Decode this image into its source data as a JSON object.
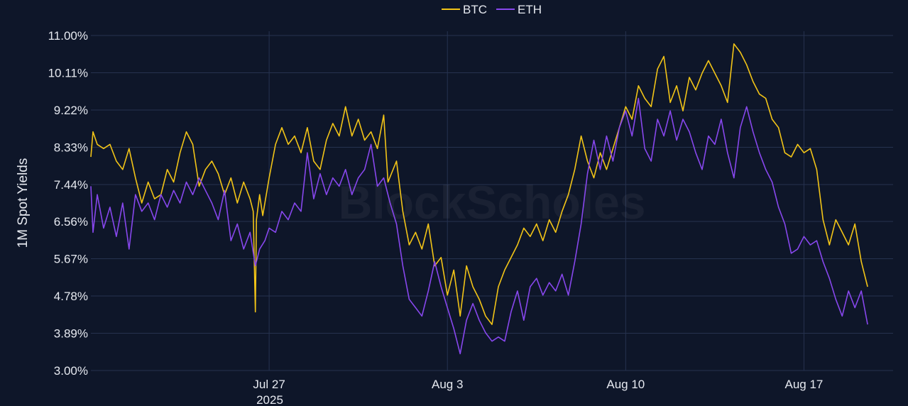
{
  "chart_data": {
    "type": "line",
    "xlabel": "",
    "ylabel": "1M Spot Yields",
    "year_label": "2025",
    "watermark": "BlockScholes",
    "x_range": [
      "2025-07-19T00:00",
      "2025-08-19T12:00"
    ],
    "ylim": [
      3.0,
      11.0
    ],
    "grid": true,
    "legend_position": "top-center",
    "x_ticks": [
      {
        "date": "2025-07-26T00:00",
        "label": "Jul 27"
      },
      {
        "date": "2025-08-02T00:00",
        "label": "Aug 3"
      },
      {
        "date": "2025-08-09T00:00",
        "label": "Aug 10"
      },
      {
        "date": "2025-08-16T00:00",
        "label": "Aug 17"
      }
    ],
    "y_ticks": [
      "3.00%",
      "3.89%",
      "4.78%",
      "5.67%",
      "6.56%",
      "7.44%",
      "8.33%",
      "9.22%",
      "10.11%",
      "11.00%"
    ],
    "y_tick_values": [
      3.0,
      3.89,
      4.78,
      5.67,
      6.56,
      7.44,
      8.33,
      9.22,
      10.11,
      11.0
    ],
    "series": [
      {
        "name": "BTC",
        "color": "#f2c417",
        "points": [
          [
            "2025-07-19T00:00",
            8.1
          ],
          [
            "2025-07-19T02:00",
            8.7
          ],
          [
            "2025-07-19T06:00",
            8.4
          ],
          [
            "2025-07-19T12:00",
            8.3
          ],
          [
            "2025-07-19T18:00",
            8.4
          ],
          [
            "2025-07-20T00:00",
            8.0
          ],
          [
            "2025-07-20T06:00",
            7.8
          ],
          [
            "2025-07-20T12:00",
            8.3
          ],
          [
            "2025-07-20T18:00",
            7.6
          ],
          [
            "2025-07-21T00:00",
            7.0
          ],
          [
            "2025-07-21T06:00",
            7.5
          ],
          [
            "2025-07-21T12:00",
            7.1
          ],
          [
            "2025-07-21T18:00",
            7.2
          ],
          [
            "2025-07-22T00:00",
            7.8
          ],
          [
            "2025-07-22T06:00",
            7.5
          ],
          [
            "2025-07-22T12:00",
            8.2
          ],
          [
            "2025-07-22T18:00",
            8.7
          ],
          [
            "2025-07-23T00:00",
            8.4
          ],
          [
            "2025-07-23T06:00",
            7.4
          ],
          [
            "2025-07-23T12:00",
            7.8
          ],
          [
            "2025-07-23T18:00",
            8.0
          ],
          [
            "2025-07-24T00:00",
            7.7
          ],
          [
            "2025-07-24T06:00",
            7.2
          ],
          [
            "2025-07-24T12:00",
            7.6
          ],
          [
            "2025-07-24T18:00",
            7.0
          ],
          [
            "2025-07-25T00:00",
            7.5
          ],
          [
            "2025-07-25T06:00",
            7.1
          ],
          [
            "2025-07-25T09:00",
            6.8
          ],
          [
            "2025-07-25T11:00",
            4.4
          ],
          [
            "2025-07-25T12:00",
            6.6
          ],
          [
            "2025-07-25T15:00",
            7.2
          ],
          [
            "2025-07-25T18:00",
            6.7
          ],
          [
            "2025-07-26T00:00",
            7.6
          ],
          [
            "2025-07-26T06:00",
            8.4
          ],
          [
            "2025-07-26T12:00",
            8.8
          ],
          [
            "2025-07-26T18:00",
            8.4
          ],
          [
            "2025-07-27T00:00",
            8.6
          ],
          [
            "2025-07-27T06:00",
            8.2
          ],
          [
            "2025-07-27T12:00",
            8.8
          ],
          [
            "2025-07-27T18:00",
            8.0
          ],
          [
            "2025-07-28T00:00",
            7.8
          ],
          [
            "2025-07-28T06:00",
            8.5
          ],
          [
            "2025-07-28T12:00",
            8.9
          ],
          [
            "2025-07-28T18:00",
            8.6
          ],
          [
            "2025-07-29T00:00",
            9.3
          ],
          [
            "2025-07-29T06:00",
            8.6
          ],
          [
            "2025-07-29T12:00",
            9.0
          ],
          [
            "2025-07-29T18:00",
            8.5
          ],
          [
            "2025-07-30T00:00",
            8.7
          ],
          [
            "2025-07-30T06:00",
            8.3
          ],
          [
            "2025-07-30T12:00",
            9.1
          ],
          [
            "2025-07-30T16:00",
            7.5
          ],
          [
            "2025-07-31T00:00",
            8.0
          ],
          [
            "2025-07-31T06:00",
            6.8
          ],
          [
            "2025-07-31T12:00",
            6.0
          ],
          [
            "2025-07-31T18:00",
            6.3
          ],
          [
            "2025-08-01T00:00",
            5.9
          ],
          [
            "2025-08-01T06:00",
            6.5
          ],
          [
            "2025-08-01T12:00",
            5.5
          ],
          [
            "2025-08-01T18:00",
            5.7
          ],
          [
            "2025-08-02T00:00",
            4.8
          ],
          [
            "2025-08-02T06:00",
            5.4
          ],
          [
            "2025-08-02T12:00",
            4.3
          ],
          [
            "2025-08-02T18:00",
            5.5
          ],
          [
            "2025-08-03T00:00",
            5.0
          ],
          [
            "2025-08-03T06:00",
            4.7
          ],
          [
            "2025-08-03T12:00",
            4.3
          ],
          [
            "2025-08-03T18:00",
            4.1
          ],
          [
            "2025-08-04T00:00",
            5.0
          ],
          [
            "2025-08-04T06:00",
            5.4
          ],
          [
            "2025-08-04T12:00",
            5.7
          ],
          [
            "2025-08-04T18:00",
            6.0
          ],
          [
            "2025-08-05T00:00",
            6.4
          ],
          [
            "2025-08-05T06:00",
            6.2
          ],
          [
            "2025-08-05T12:00",
            6.5
          ],
          [
            "2025-08-05T18:00",
            6.1
          ],
          [
            "2025-08-06T00:00",
            6.6
          ],
          [
            "2025-08-06T06:00",
            6.3
          ],
          [
            "2025-08-06T12:00",
            6.8
          ],
          [
            "2025-08-06T18:00",
            7.2
          ],
          [
            "2025-08-07T00:00",
            7.8
          ],
          [
            "2025-08-07T06:00",
            8.6
          ],
          [
            "2025-08-07T12:00",
            8.0
          ],
          [
            "2025-08-07T18:00",
            7.6
          ],
          [
            "2025-08-08T00:00",
            8.2
          ],
          [
            "2025-08-08T06:00",
            7.8
          ],
          [
            "2025-08-08T12:00",
            8.3
          ],
          [
            "2025-08-08T18:00",
            8.8
          ],
          [
            "2025-08-09T00:00",
            9.3
          ],
          [
            "2025-08-09T06:00",
            9.0
          ],
          [
            "2025-08-09T12:00",
            9.8
          ],
          [
            "2025-08-09T18:00",
            9.5
          ],
          [
            "2025-08-10T00:00",
            9.3
          ],
          [
            "2025-08-10T06:00",
            10.2
          ],
          [
            "2025-08-10T12:00",
            10.5
          ],
          [
            "2025-08-10T18:00",
            9.4
          ],
          [
            "2025-08-11T00:00",
            9.8
          ],
          [
            "2025-08-11T06:00",
            9.2
          ],
          [
            "2025-08-11T12:00",
            10.0
          ],
          [
            "2025-08-11T18:00",
            9.7
          ],
          [
            "2025-08-12T00:00",
            10.1
          ],
          [
            "2025-08-12T06:00",
            10.4
          ],
          [
            "2025-08-12T12:00",
            10.1
          ],
          [
            "2025-08-12T18:00",
            9.8
          ],
          [
            "2025-08-13T00:00",
            9.4
          ],
          [
            "2025-08-13T06:00",
            10.8
          ],
          [
            "2025-08-13T12:00",
            10.6
          ],
          [
            "2025-08-13T18:00",
            10.3
          ],
          [
            "2025-08-14T00:00",
            9.9
          ],
          [
            "2025-08-14T06:00",
            9.6
          ],
          [
            "2025-08-14T12:00",
            9.5
          ],
          [
            "2025-08-14T18:00",
            9.0
          ],
          [
            "2025-08-15T00:00",
            8.8
          ],
          [
            "2025-08-15T06:00",
            8.2
          ],
          [
            "2025-08-15T12:00",
            8.1
          ],
          [
            "2025-08-15T18:00",
            8.4
          ],
          [
            "2025-08-16T00:00",
            8.2
          ],
          [
            "2025-08-16T06:00",
            8.3
          ],
          [
            "2025-08-16T12:00",
            7.8
          ],
          [
            "2025-08-16T18:00",
            6.6
          ],
          [
            "2025-08-17T00:00",
            6.0
          ],
          [
            "2025-08-17T06:00",
            6.6
          ],
          [
            "2025-08-17T12:00",
            6.3
          ],
          [
            "2025-08-17T18:00",
            6.0
          ],
          [
            "2025-08-18T00:00",
            6.5
          ],
          [
            "2025-08-18T06:00",
            5.6
          ],
          [
            "2025-08-18T12:00",
            5.0
          ]
        ]
      },
      {
        "name": "ETH",
        "color": "#8747ed",
        "points": [
          [
            "2025-07-19T00:00",
            7.4
          ],
          [
            "2025-07-19T02:00",
            6.3
          ],
          [
            "2025-07-19T06:00",
            7.2
          ],
          [
            "2025-07-19T12:00",
            6.4
          ],
          [
            "2025-07-19T18:00",
            6.9
          ],
          [
            "2025-07-20T00:00",
            6.2
          ],
          [
            "2025-07-20T06:00",
            7.0
          ],
          [
            "2025-07-20T12:00",
            5.9
          ],
          [
            "2025-07-20T18:00",
            7.2
          ],
          [
            "2025-07-21T00:00",
            6.8
          ],
          [
            "2025-07-21T06:00",
            7.0
          ],
          [
            "2025-07-21T12:00",
            6.6
          ],
          [
            "2025-07-21T18:00",
            7.2
          ],
          [
            "2025-07-22T00:00",
            6.9
          ],
          [
            "2025-07-22T06:00",
            7.3
          ],
          [
            "2025-07-22T12:00",
            7.0
          ],
          [
            "2025-07-22T18:00",
            7.5
          ],
          [
            "2025-07-23T00:00",
            7.2
          ],
          [
            "2025-07-23T06:00",
            7.6
          ],
          [
            "2025-07-23T12:00",
            7.3
          ],
          [
            "2025-07-23T18:00",
            7.0
          ],
          [
            "2025-07-24T00:00",
            6.6
          ],
          [
            "2025-07-24T06:00",
            7.3
          ],
          [
            "2025-07-24T12:00",
            6.1
          ],
          [
            "2025-07-24T18:00",
            6.5
          ],
          [
            "2025-07-25T00:00",
            5.9
          ],
          [
            "2025-07-25T06:00",
            6.3
          ],
          [
            "2025-07-25T11:00",
            5.5
          ],
          [
            "2025-07-25T15:00",
            5.9
          ],
          [
            "2025-07-25T20:00",
            6.1
          ],
          [
            "2025-07-26T00:00",
            6.4
          ],
          [
            "2025-07-26T06:00",
            6.3
          ],
          [
            "2025-07-26T12:00",
            6.8
          ],
          [
            "2025-07-26T18:00",
            6.6
          ],
          [
            "2025-07-27T00:00",
            7.0
          ],
          [
            "2025-07-27T06:00",
            6.8
          ],
          [
            "2025-07-27T12:00",
            8.2
          ],
          [
            "2025-07-27T18:00",
            7.1
          ],
          [
            "2025-07-28T00:00",
            7.7
          ],
          [
            "2025-07-28T06:00",
            7.2
          ],
          [
            "2025-07-28T12:00",
            7.6
          ],
          [
            "2025-07-28T18:00",
            7.4
          ],
          [
            "2025-07-29T00:00",
            7.8
          ],
          [
            "2025-07-29T06:00",
            7.2
          ],
          [
            "2025-07-29T12:00",
            7.6
          ],
          [
            "2025-07-29T18:00",
            7.8
          ],
          [
            "2025-07-30T00:00",
            8.4
          ],
          [
            "2025-07-30T06:00",
            7.4
          ],
          [
            "2025-07-30T12:00",
            7.6
          ],
          [
            "2025-07-30T18:00",
            7.0
          ],
          [
            "2025-07-31T00:00",
            6.5
          ],
          [
            "2025-07-31T06:00",
            5.5
          ],
          [
            "2025-07-31T12:00",
            4.7
          ],
          [
            "2025-07-31T18:00",
            4.5
          ],
          [
            "2025-08-01T00:00",
            4.3
          ],
          [
            "2025-08-01T06:00",
            4.9
          ],
          [
            "2025-08-01T12:00",
            5.6
          ],
          [
            "2025-08-01T18:00",
            5.0
          ],
          [
            "2025-08-02T00:00",
            4.5
          ],
          [
            "2025-08-02T06:00",
            4.0
          ],
          [
            "2025-08-02T12:00",
            3.4
          ],
          [
            "2025-08-02T18:00",
            4.2
          ],
          [
            "2025-08-03T00:00",
            4.6
          ],
          [
            "2025-08-03T06:00",
            4.2
          ],
          [
            "2025-08-03T12:00",
            3.9
          ],
          [
            "2025-08-03T18:00",
            3.7
          ],
          [
            "2025-08-04T00:00",
            3.8
          ],
          [
            "2025-08-04T06:00",
            3.7
          ],
          [
            "2025-08-04T12:00",
            4.4
          ],
          [
            "2025-08-04T18:00",
            4.9
          ],
          [
            "2025-08-05T00:00",
            4.2
          ],
          [
            "2025-08-05T06:00",
            5.0
          ],
          [
            "2025-08-05T12:00",
            5.2
          ],
          [
            "2025-08-05T18:00",
            4.8
          ],
          [
            "2025-08-06T00:00",
            5.1
          ],
          [
            "2025-08-06T06:00",
            4.9
          ],
          [
            "2025-08-06T12:00",
            5.3
          ],
          [
            "2025-08-06T18:00",
            4.8
          ],
          [
            "2025-08-07T00:00",
            5.6
          ],
          [
            "2025-08-07T06:00",
            6.5
          ],
          [
            "2025-08-07T12:00",
            7.7
          ],
          [
            "2025-08-07T18:00",
            8.5
          ],
          [
            "2025-08-08T00:00",
            7.8
          ],
          [
            "2025-08-08T06:00",
            8.6
          ],
          [
            "2025-08-08T12:00",
            8.0
          ],
          [
            "2025-08-08T18:00",
            8.8
          ],
          [
            "2025-08-09T00:00",
            9.2
          ],
          [
            "2025-08-09T06:00",
            8.6
          ],
          [
            "2025-08-09T12:00",
            9.5
          ],
          [
            "2025-08-09T18:00",
            8.3
          ],
          [
            "2025-08-10T00:00",
            8.0
          ],
          [
            "2025-08-10T06:00",
            9.0
          ],
          [
            "2025-08-10T12:00",
            8.6
          ],
          [
            "2025-08-10T18:00",
            9.2
          ],
          [
            "2025-08-11T00:00",
            8.5
          ],
          [
            "2025-08-11T06:00",
            9.0
          ],
          [
            "2025-08-11T12:00",
            8.7
          ],
          [
            "2025-08-11T18:00",
            8.2
          ],
          [
            "2025-08-12T00:00",
            7.8
          ],
          [
            "2025-08-12T06:00",
            8.6
          ],
          [
            "2025-08-12T12:00",
            8.4
          ],
          [
            "2025-08-12T18:00",
            9.0
          ],
          [
            "2025-08-13T00:00",
            8.2
          ],
          [
            "2025-08-13T06:00",
            7.6
          ],
          [
            "2025-08-13T12:00",
            8.8
          ],
          [
            "2025-08-13T18:00",
            9.3
          ],
          [
            "2025-08-14T00:00",
            8.7
          ],
          [
            "2025-08-14T06:00",
            8.2
          ],
          [
            "2025-08-14T12:00",
            7.8
          ],
          [
            "2025-08-14T18:00",
            7.5
          ],
          [
            "2025-08-15T00:00",
            6.9
          ],
          [
            "2025-08-15T06:00",
            6.5
          ],
          [
            "2025-08-15T12:00",
            5.8
          ],
          [
            "2025-08-15T18:00",
            5.9
          ],
          [
            "2025-08-16T00:00",
            6.2
          ],
          [
            "2025-08-16T06:00",
            6.0
          ],
          [
            "2025-08-16T12:00",
            6.1
          ],
          [
            "2025-08-16T18:00",
            5.6
          ],
          [
            "2025-08-17T00:00",
            5.2
          ],
          [
            "2025-08-17T06:00",
            4.7
          ],
          [
            "2025-08-17T12:00",
            4.3
          ],
          [
            "2025-08-17T18:00",
            4.9
          ],
          [
            "2025-08-18T00:00",
            4.5
          ],
          [
            "2025-08-18T06:00",
            4.9
          ],
          [
            "2025-08-18T12:00",
            4.1
          ]
        ]
      }
    ]
  }
}
